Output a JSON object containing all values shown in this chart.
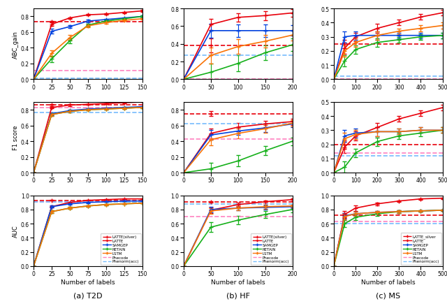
{
  "T2D": {
    "x": [
      0,
      25,
      50,
      75,
      100,
      125,
      150
    ],
    "ABC_gain": {
      "LATTE_silver": {
        "hline": 0.73,
        "hline_err": 0.01
      },
      "LATTE": {
        "y": [
          0.0,
          0.7,
          0.78,
          0.82,
          0.83,
          0.85,
          0.87
        ],
        "yerr": [
          0.0,
          0.02,
          0.01,
          0.01,
          0.01,
          0.01,
          0.01
        ]
      },
      "SAMGEP": {
        "y": [
          0.0,
          0.61,
          0.67,
          0.74,
          0.76,
          0.78,
          0.8
        ],
        "yerr": [
          0.0,
          0.03,
          0.02,
          0.02,
          0.01,
          0.01,
          0.01
        ]
      },
      "RETAIN": {
        "y": [
          0.0,
          0.26,
          0.49,
          0.69,
          0.74,
          0.77,
          0.8
        ],
        "yerr": [
          0.0,
          0.04,
          0.03,
          0.02,
          0.01,
          0.01,
          0.01
        ]
      },
      "LSTM": {
        "y": [
          0.0,
          0.33,
          0.53,
          0.68,
          0.72,
          0.75,
          0.77
        ],
        "yerr": [
          0.0,
          0.04,
          0.03,
          0.02,
          0.01,
          0.01,
          0.01
        ]
      },
      "Phecode": {
        "hline": 0.11
      },
      "Phenorm": {
        "hline": 0.01
      }
    },
    "F1_score": {
      "LATTE_silver": {
        "hline": 0.86,
        "hline_err": 0.01
      },
      "LATTE": {
        "y": [
          0.0,
          0.83,
          0.86,
          0.87,
          0.88,
          0.89,
          0.9
        ],
        "yerr": [
          0.0,
          0.01,
          0.01,
          0.005,
          0.005,
          0.005,
          0.005
        ]
      },
      "SAMGEP": {
        "y": [
          0.0,
          0.75,
          0.79,
          0.81,
          0.82,
          0.83,
          0.84
        ],
        "yerr": [
          0.0,
          0.02,
          0.015,
          0.01,
          0.01,
          0.01,
          0.01
        ]
      },
      "RETAIN": {
        "y": [
          0.0,
          0.74,
          0.78,
          0.8,
          0.81,
          0.82,
          0.83
        ],
        "yerr": [
          0.0,
          0.02,
          0.015,
          0.01,
          0.01,
          0.01,
          0.01
        ]
      },
      "LSTM": {
        "y": [
          0.0,
          0.74,
          0.78,
          0.8,
          0.81,
          0.82,
          0.83
        ],
        "yerr": [
          0.0,
          0.02,
          0.015,
          0.01,
          0.01,
          0.01,
          0.01
        ]
      },
      "Phecode": {
        "hline": 0.83
      },
      "Phenorm": {
        "hline": 0.77
      }
    },
    "AUC": {
      "LATTE_silver": {
        "hline": 0.93,
        "hline_err": 0.005
      },
      "LATTE": {
        "y": [
          0.0,
          0.84,
          0.9,
          0.93,
          0.94,
          0.95,
          0.95
        ],
        "yerr": [
          0.0,
          0.01,
          0.008,
          0.005,
          0.005,
          0.005,
          0.005
        ]
      },
      "SAMGEP": {
        "y": [
          0.0,
          0.84,
          0.88,
          0.9,
          0.91,
          0.92,
          0.92
        ],
        "yerr": [
          0.0,
          0.015,
          0.01,
          0.008,
          0.005,
          0.005,
          0.005
        ]
      },
      "RETAIN": {
        "y": [
          0.0,
          0.77,
          0.82,
          0.85,
          0.87,
          0.88,
          0.89
        ],
        "yerr": [
          0.0,
          0.02,
          0.015,
          0.01,
          0.008,
          0.005,
          0.005
        ]
      },
      "LSTM": {
        "y": [
          0.0,
          0.77,
          0.82,
          0.85,
          0.87,
          0.88,
          0.89
        ],
        "yerr": [
          0.0,
          0.02,
          0.015,
          0.01,
          0.008,
          0.005,
          0.005
        ]
      },
      "Phecode": {
        "hline": 0.91
      },
      "Phenorm": {
        "hline": 0.91
      }
    },
    "xlim": [
      0,
      150
    ],
    "xticks": [
      0,
      25,
      50,
      75,
      100,
      125,
      150
    ],
    "xlabel": "Number of labels",
    "title": "(a) T2D",
    "ylims": {
      "ABC_gain": [
        0.0,
        0.9
      ],
      "F1_score": [
        0.0,
        0.9
      ],
      "AUC": [
        0.0,
        1.0
      ]
    }
  },
  "HF": {
    "x": [
      0,
      50,
      100,
      150,
      200
    ],
    "ABC_gain": {
      "LATTE_silver": {
        "hline": 0.38,
        "hline_err": 0.08
      },
      "LATTE": {
        "y": [
          0.0,
          0.62,
          0.7,
          0.72,
          0.75
        ],
        "yerr": [
          0.0,
          0.06,
          0.05,
          0.05,
          0.04
        ]
      },
      "SAMGEP": {
        "y": [
          0.0,
          0.55,
          0.55,
          0.55,
          0.55
        ],
        "yerr": [
          0.0,
          0.08,
          0.07,
          0.07,
          0.06
        ]
      },
      "RETAIN": {
        "y": [
          0.0,
          0.08,
          0.18,
          0.3,
          0.39
        ],
        "yerr": [
          0.0,
          0.1,
          0.09,
          0.08,
          0.07
        ]
      },
      "LSTM": {
        "y": [
          0.0,
          0.27,
          0.37,
          0.43,
          0.5
        ],
        "yerr": [
          0.0,
          0.09,
          0.08,
          0.07,
          0.06
        ]
      },
      "Phecode": {
        "hline": 0.0
      },
      "Phenorm": {
        "hline": 0.27
      }
    },
    "F1_score": {
      "LATTE_silver": {
        "hline": 0.75,
        "hline_err": 0.03
      },
      "LATTE": {
        "y": [
          0.0,
          0.5,
          0.58,
          0.62,
          0.65
        ],
        "yerr": [
          0.0,
          0.06,
          0.05,
          0.04,
          0.04
        ]
      },
      "SAMGEP": {
        "y": [
          0.0,
          0.48,
          0.53,
          0.57,
          0.62
        ],
        "yerr": [
          0.0,
          0.06,
          0.05,
          0.05,
          0.04
        ]
      },
      "RETAIN": {
        "y": [
          0.0,
          0.05,
          0.15,
          0.28,
          0.4
        ],
        "yerr": [
          0.0,
          0.08,
          0.07,
          0.06,
          0.05
        ]
      },
      "LSTM": {
        "y": [
          0.0,
          0.42,
          0.5,
          0.56,
          0.63
        ],
        "yerr": [
          0.0,
          0.07,
          0.06,
          0.05,
          0.04
        ]
      },
      "Phecode": {
        "hline": 0.43
      },
      "Phenorm": {
        "hline": 0.62
      }
    },
    "AUC": {
      "LATTE_silver": {
        "hline": 0.91,
        "hline_err": 0.01
      },
      "LATTE": {
        "y": [
          0.0,
          0.79,
          0.87,
          0.91,
          0.94
        ],
        "yerr": [
          0.0,
          0.04,
          0.03,
          0.02,
          0.02
        ]
      },
      "SAMGEP": {
        "y": [
          0.0,
          0.8,
          0.82,
          0.83,
          0.84
        ],
        "yerr": [
          0.0,
          0.04,
          0.03,
          0.03,
          0.02
        ]
      },
      "RETAIN": {
        "y": [
          0.0,
          0.55,
          0.65,
          0.73,
          0.8
        ],
        "yerr": [
          0.0,
          0.07,
          0.06,
          0.05,
          0.04
        ]
      },
      "LSTM": {
        "y": [
          0.0,
          0.78,
          0.82,
          0.84,
          0.85
        ],
        "yerr": [
          0.0,
          0.04,
          0.03,
          0.03,
          0.02
        ]
      },
      "Phecode": {
        "hline": 0.7
      },
      "Phenorm": {
        "hline": 0.88
      }
    },
    "xlim": [
      0,
      200
    ],
    "xticks": [
      0,
      50,
      100,
      150,
      200
    ],
    "xlabel": "Number of labels",
    "title": "(b) HF",
    "ylims": {
      "ABC_gain": [
        0.0,
        0.8
      ],
      "F1_score": [
        0.0,
        0.9
      ],
      "AUC": [
        0.0,
        1.0
      ]
    }
  },
  "MS": {
    "x": [
      0,
      50,
      100,
      200,
      300,
      400,
      500
    ],
    "ABC_gain": {
      "LATTE_silver": {
        "hline": 0.25,
        "hline_err": 0.03
      },
      "LATTE": {
        "y": [
          0.0,
          0.22,
          0.3,
          0.36,
          0.4,
          0.44,
          0.47
        ],
        "yerr": [
          0.0,
          0.04,
          0.03,
          0.03,
          0.02,
          0.02,
          0.02
        ]
      },
      "SAMGEP": {
        "y": [
          0.0,
          0.3,
          0.31,
          0.31,
          0.31,
          0.31,
          0.31
        ],
        "yerr": [
          0.0,
          0.04,
          0.03,
          0.03,
          0.02,
          0.02,
          0.02
        ]
      },
      "RETAIN": {
        "y": [
          0.0,
          0.13,
          0.21,
          0.26,
          0.28,
          0.3,
          0.31
        ],
        "yerr": [
          0.0,
          0.04,
          0.03,
          0.03,
          0.02,
          0.02,
          0.02
        ]
      },
      "LSTM": {
        "y": [
          0.0,
          0.2,
          0.26,
          0.31,
          0.34,
          0.36,
          0.38
        ],
        "yerr": [
          0.0,
          0.04,
          0.03,
          0.03,
          0.02,
          0.02,
          0.02
        ]
      },
      "Phecode": {
        "hline": 0.0
      },
      "Phenorm": {
        "hline": 0.02
      }
    },
    "F1_score": {
      "LATTE_silver": {
        "hline": 0.2,
        "hline_err": 0.03
      },
      "LATTE": {
        "y": [
          0.0,
          0.18,
          0.26,
          0.32,
          0.38,
          0.42,
          0.46
        ],
        "yerr": [
          0.0,
          0.04,
          0.03,
          0.03,
          0.02,
          0.02,
          0.02
        ]
      },
      "SAMGEP": {
        "y": [
          0.0,
          0.26,
          0.28,
          0.29,
          0.29,
          0.3,
          0.3
        ],
        "yerr": [
          0.0,
          0.04,
          0.03,
          0.03,
          0.02,
          0.02,
          0.02
        ]
      },
      "RETAIN": {
        "y": [
          0.0,
          0.04,
          0.14,
          0.22,
          0.26,
          0.28,
          0.3
        ],
        "yerr": [
          0.0,
          0.04,
          0.03,
          0.03,
          0.02,
          0.02,
          0.02
        ]
      },
      "LSTM": {
        "y": [
          0.0,
          0.24,
          0.27,
          0.29,
          0.29,
          0.3,
          0.3
        ],
        "yerr": [
          0.0,
          0.04,
          0.03,
          0.03,
          0.02,
          0.02,
          0.02
        ]
      },
      "Phecode": {
        "hline": 0.14
      },
      "Phenorm": {
        "hline": 0.12
      }
    },
    "AUC": {
      "LATTE_silver": {
        "hline": 0.72,
        "hline_err": 0.03
      },
      "LATTE": {
        "y": [
          0.0,
          0.73,
          0.82,
          0.88,
          0.92,
          0.95,
          0.96
        ],
        "yerr": [
          0.0,
          0.05,
          0.04,
          0.02,
          0.01,
          0.01,
          0.01
        ]
      },
      "SAMGEP": {
        "y": [
          0.0,
          0.71,
          0.74,
          0.76,
          0.77,
          0.78,
          0.79
        ],
        "yerr": [
          0.0,
          0.04,
          0.03,
          0.02,
          0.02,
          0.01,
          0.01
        ]
      },
      "RETAIN": {
        "y": [
          0.0,
          0.6,
          0.69,
          0.74,
          0.77,
          0.78,
          0.79
        ],
        "yerr": [
          0.0,
          0.05,
          0.04,
          0.03,
          0.02,
          0.01,
          0.01
        ]
      },
      "LSTM": {
        "y": [
          0.0,
          0.7,
          0.74,
          0.76,
          0.77,
          0.78,
          0.79
        ],
        "yerr": [
          0.0,
          0.04,
          0.03,
          0.02,
          0.02,
          0.01,
          0.01
        ]
      },
      "Phecode": {
        "hline": 0.63
      },
      "Phenorm": {
        "hline": 0.6
      }
    },
    "xlim": [
      0,
      500
    ],
    "xticks": [
      0,
      100,
      200,
      300,
      400,
      500
    ],
    "xlabel": "Number of labels",
    "title": "(c) MS",
    "ylims": {
      "ABC_gain": [
        0.0,
        0.5
      ],
      "F1_score": [
        0.0,
        0.5
      ],
      "AUC": [
        0.0,
        1.0
      ]
    }
  },
  "metrics": [
    "ABC_gain",
    "F1_score",
    "AUC"
  ],
  "ylabels": {
    "ABC_gain": "ABC_gain",
    "F1_score": "F1 score",
    "AUC": "AUC"
  },
  "series_style": {
    "LATTE_silver": {
      "color": "#E8000B",
      "linestyle": "--",
      "marker": "+",
      "linewidth": 1.2,
      "markersize": 5
    },
    "LATTE": {
      "color": "#E8000B",
      "linestyle": "-",
      "marker": "+",
      "linewidth": 1.2,
      "markersize": 5
    },
    "SAMGEP": {
      "color": "#0343DF",
      "linestyle": "-",
      "marker": "+",
      "linewidth": 1.2,
      "markersize": 5
    },
    "RETAIN": {
      "color": "#15B01A",
      "linestyle": "-",
      "marker": "+",
      "linewidth": 1.2,
      "markersize": 5
    },
    "LSTM": {
      "color": "#F97306",
      "linestyle": "-",
      "marker": "+",
      "linewidth": 1.2,
      "markersize": 5
    },
    "Phecode": {
      "color": "#FF81C0",
      "linestyle": "--",
      "marker": "",
      "linewidth": 1.2,
      "markersize": 0
    },
    "Phenorm": {
      "color": "#75BBFD",
      "linestyle": "--",
      "marker": "",
      "linewidth": 1.2,
      "markersize": 0
    }
  },
  "legend_labels": {
    "T2D": {
      "LATTE_silver": "LATTE(silver)",
      "LATTE": "LATTE",
      "SAMGEP": "SAMGEP",
      "RETAIN": "RETAIN",
      "LSTM": "LSTM",
      "Phecode": "Phecode",
      "Phenorm": "Phenorm(acc)"
    },
    "HF": {
      "LATTE_silver": "LATTE(silver)",
      "LATTE": "LATTE",
      "SAMGEP": "SAMGEP",
      "RETAIN": "RETAIN",
      "LSTM": "LSTM",
      "Phecode": "Phecode",
      "Phenorm": "Phenorm(acc)"
    },
    "MS": {
      "LATTE_silver": "LATTE_silver",
      "LATTE": "LATTE",
      "SAMGEP": "SAMGEP",
      "RETAIN": "RETAIN",
      "LSTM": "LSTM",
      "Phecode": "Phecode",
      "Phenorm": "Phenorm(acc)"
    }
  }
}
